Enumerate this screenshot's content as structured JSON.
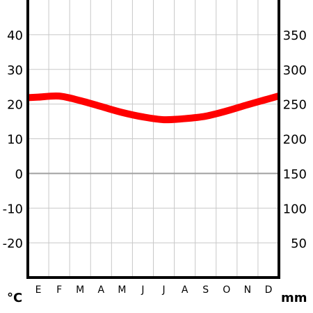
{
  "chart_data": {
    "type": "line",
    "title": "",
    "categories": [
      "E",
      "F",
      "M",
      "A",
      "M",
      "J",
      "J",
      "A",
      "S",
      "O",
      "N",
      "D"
    ],
    "left_axis": {
      "unit": "°C",
      "ylim": [
        -30,
        50
      ],
      "ticks": [
        -20,
        -10,
        0,
        10,
        20,
        30,
        40
      ]
    },
    "right_axis": {
      "unit": "mm",
      "ylim": [
        0,
        400
      ],
      "ticks": [
        50,
        100,
        150,
        200,
        250,
        300,
        350
      ]
    },
    "grid": true,
    "series": [
      {
        "axis": "left",
        "color": "#ff0000",
        "values": [
          22,
          22.3,
          21,
          19.3,
          17.6,
          16.3,
          15.5,
          15.8,
          16.5,
          18,
          19.8,
          21.5
        ]
      },
      {
        "axis": "right",
        "type": "bar",
        "color": "#000080",
        "values": [
          0,
          0,
          0,
          0,
          0,
          1,
          1,
          1,
          1,
          0,
          0,
          0
        ]
      }
    ]
  }
}
